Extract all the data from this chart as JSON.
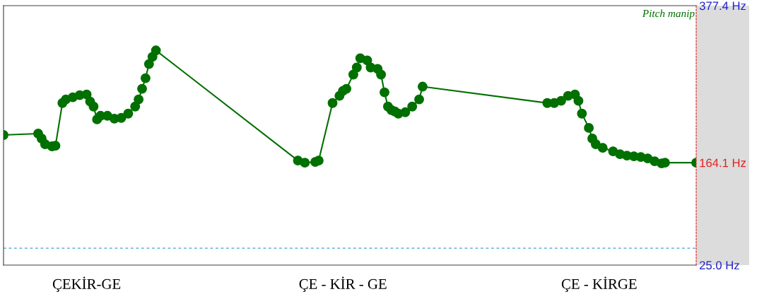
{
  "chart_data": {
    "type": "line",
    "title": "Pitch manip",
    "categories": [
      null,
      null,
      null,
      null,
      null,
      null,
      null,
      null,
      null,
      null,
      null,
      null,
      null,
      null,
      null,
      null,
      null,
      null,
      null,
      null,
      null,
      null,
      null,
      null,
      null,
      null,
      null,
      null,
      null,
      null,
      null,
      null,
      null,
      null,
      null,
      null,
      null,
      null,
      null,
      null,
      null,
      null,
      null,
      null,
      null,
      null,
      null,
      null,
      null,
      null,
      null,
      null,
      null,
      null,
      null,
      null,
      null,
      null,
      null,
      null,
      null,
      null,
      null,
      null,
      null,
      null,
      null,
      null,
      null,
      null,
      null,
      null,
      null,
      null,
      null,
      null,
      null,
      null,
      null,
      null,
      null,
      null,
      null,
      null,
      null,
      null,
      null,
      null,
      null,
      null,
      null,
      null,
      null,
      null,
      null,
      null,
      null,
      null,
      null,
      null,
      null,
      null,
      null,
      null,
      null,
      null,
      null,
      null,
      null,
      null,
      null,
      null,
      null,
      null,
      null,
      null,
      null,
      null,
      null,
      null,
      null,
      null,
      null,
      null,
      null,
      null,
      null,
      null,
      null,
      null,
      null,
      null,
      null,
      null,
      null,
      null,
      null,
      null,
      null,
      null,
      null,
      null,
      null,
      null,
      null,
      null,
      null,
      null,
      null,
      null,
      null,
      null,
      null,
      null,
      null,
      null,
      null,
      null,
      null,
      null,
      null,
      null,
      null,
      null,
      null,
      null,
      null,
      null,
      null,
      null,
      null,
      null,
      null,
      null,
      null,
      null,
      null,
      null,
      null,
      null,
      null,
      null,
      null,
      null,
      null,
      null,
      null,
      null,
      null,
      null,
      null,
      null,
      null,
      null,
      null,
      null,
      null,
      null,
      null,
      null,
      null
    ],
    "ylim": [
      25,
      377.4
    ],
    "marker": "circle",
    "yticks": [
      {
        "value": 25,
        "label": "25.0 Hz"
      },
      {
        "value": 164.1,
        "label": "164.1 Hz"
      },
      {
        "value": 377.4,
        "label": "377.4 Hz"
      }
    ],
    "tick_labels": "y",
    "grid": false,
    "legend": false,
    "series": [
      {
        "color": "#007000",
        "values": [
          201.7,
          null,
          null,
          null,
          null,
          null,
          null,
          null,
          null,
          null,
          203.6,
          196.9,
          189.2,
          null,
          186.3,
          187.2,
          null,
          245.1,
          250.0,
          null,
          252.9,
          null,
          255.8,
          null,
          256.7,
          247.1,
          240.3,
          222.9,
          227.8,
          null,
          227.8,
          null,
          223.9,
          null,
          224.9,
          null,
          230.7,
          null,
          240.3,
          250.0,
          264.5,
          278.9,
          298.1,
          307.9,
          316.6,
          null,
          null,
          null,
          null,
          null,
          null,
          null,
          null,
          null,
          null,
          null,
          null,
          null,
          null,
          null,
          null,
          null,
          null,
          null,
          null,
          null,
          null,
          null,
          null,
          null,
          null,
          null,
          null,
          null,
          null,
          null,
          null,
          null,
          null,
          null,
          null,
          null,
          null,
          null,
          null,
          167.0,
          null,
          164.1,
          null,
          null,
          165.1,
          167.0,
          null,
          null,
          null,
          245.1,
          null,
          254.8,
          261.6,
          264.5,
          null,
          283.8,
          293.4,
          306.0,
          null,
          303.1,
          293.4,
          null,
          291.5,
          283.8,
          259.6,
          240.3,
          235.5,
          233.6,
          230.7,
          null,
          232.6,
          null,
          240.3,
          null,
          250.0,
          267.4,
          null,
          null,
          null,
          null,
          null,
          null,
          null,
          null,
          null,
          null,
          null,
          null,
          null,
          null,
          null,
          null,
          null,
          null,
          null,
          null,
          null,
          null,
          null,
          null,
          null,
          null,
          null,
          null,
          null,
          null,
          null,
          null,
          null,
          null,
          null,
          245.1,
          null,
          245.1,
          null,
          248.1,
          null,
          254.8,
          null,
          256.7,
          248.1,
          230.7,
          null,
          211.4,
          196.9,
          189.2,
          null,
          184.3,
          null,
          null,
          179.5,
          null,
          175.6,
          null,
          173.7,
          null,
          172.8,
          null,
          171.8,
          null,
          169.9,
          null,
          166.0,
          null,
          163.1,
          164.1,
          null,
          null,
          null,
          null,
          null,
          null,
          null,
          null,
          164.1
        ]
      }
    ],
    "ref_lines": [
      {
        "axis": "y",
        "value": 48,
        "label": null,
        "color": "#40a0d0",
        "line_style": "dashed"
      }
    ],
    "annotations": [
      "ÇEKİR-GE",
      "ÇE - KİR - GE",
      "ÇE - KİRGE"
    ]
  }
}
